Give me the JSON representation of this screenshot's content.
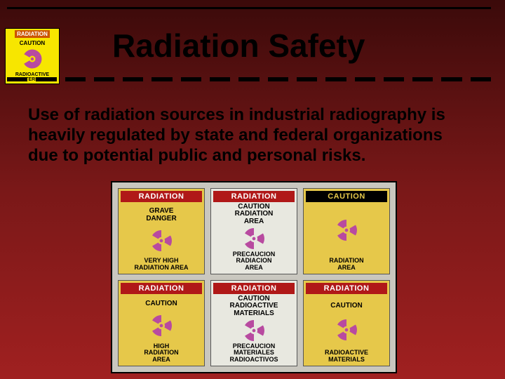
{
  "slide": {
    "title": "Radiation Safety",
    "body": "Use of radiation sources in industrial radiography is heavily regulated by state and federal organizations due to potential public and personal risks.",
    "background_gradient": [
      "#3b0a0a",
      "#7a1818",
      "#a02020"
    ]
  },
  "logo": {
    "top_label": "RADIATION",
    "caution": "CAUTION",
    "bottom_line1": "RADIOACTIVE",
    "bottom_line2": "MATERIALS",
    "bg_color": "#f7e600",
    "trefoil_color": "#b84aa0"
  },
  "dash_count": 17,
  "trefoil_svg": {
    "fill_magenta": "#b84aa0",
    "fill_dark": "#222"
  },
  "signs": [
    {
      "bg": "yellow-bg",
      "header_class": "hdr-red",
      "header": "RADIATION",
      "sub": "GRAVE\nDANGER",
      "bottom": "VERY HIGH\nRADIATION AREA",
      "trefoil": "#b84aa0"
    },
    {
      "bg": "white-bg",
      "header_class": "hdr-red",
      "header": "RADIATION",
      "sub": "CAUTION\nRADIATION\nAREA",
      "bottom": "PRECAUCION\nRADIACION\nAREA",
      "trefoil": "#b84aa0"
    },
    {
      "bg": "yellow-bg",
      "header_class": "hdr-black",
      "header": "CAUTION",
      "sub": "",
      "bottom": "RADIATION\nAREA",
      "trefoil": "#b84aa0"
    },
    {
      "bg": "yellow-bg",
      "header_class": "hdr-red",
      "header": "RADIATION",
      "sub": "CAUTION",
      "bottom": "HIGH\nRADIATION\nAREA",
      "trefoil": "#b84aa0"
    },
    {
      "bg": "white-bg",
      "header_class": "hdr-red",
      "header": "RADIATION",
      "sub": "CAUTION\nRADIOACTIVE\nMATERIALS",
      "bottom": "PRECAUCION\nMATERIALES\nRADIOACTIVOS",
      "trefoil": "#b84aa0"
    },
    {
      "bg": "yellow-bg",
      "header_class": "hdr-red",
      "header": "RADIATION",
      "sub": "CAUTION",
      "bottom": "RADIOACTIVE\nMATERIALS",
      "trefoil": "#b84aa0"
    }
  ]
}
